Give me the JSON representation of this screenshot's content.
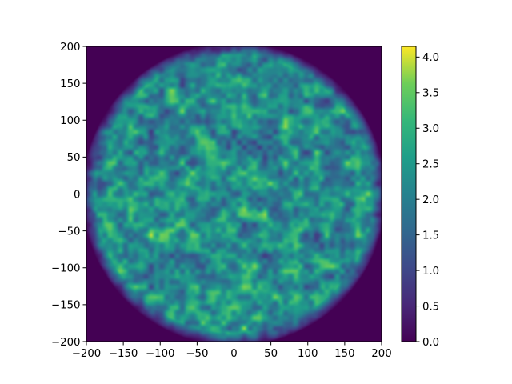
{
  "chart_data": {
    "type": "heatmap",
    "title": "",
    "xlabel": "",
    "ylabel": "",
    "xlim": [
      -200,
      200
    ],
    "ylim": [
      -200,
      200
    ],
    "xticks": [
      -200,
      -150,
      -100,
      -50,
      0,
      50,
      100,
      150,
      200
    ],
    "yticks": [
      -200,
      -150,
      -100,
      -50,
      0,
      50,
      100,
      150,
      200
    ],
    "xtick_labels": [
      "−200",
      "−150",
      "−100",
      "−50",
      "0",
      "50",
      "100",
      "150",
      "200"
    ],
    "ytick_labels": [
      "−200",
      "−150",
      "−100",
      "−50",
      "0",
      "50",
      "100",
      "150",
      "200"
    ],
    "disk": {
      "center": [
        0,
        0
      ],
      "radius": 200,
      "inside_mean": 2.3,
      "outside_value": 0.0
    },
    "colormap": "viridis",
    "colorbar": {
      "range": [
        0.0,
        4.15
      ],
      "ticks": [
        0.0,
        0.5,
        1.0,
        1.5,
        2.0,
        2.5,
        3.0,
        3.5,
        4.0
      ],
      "tick_labels": [
        "0.0",
        "0.5",
        "1.0",
        "1.5",
        "2.0",
        "2.5",
        "3.0",
        "3.5",
        "4.0"
      ]
    },
    "grid": false
  }
}
